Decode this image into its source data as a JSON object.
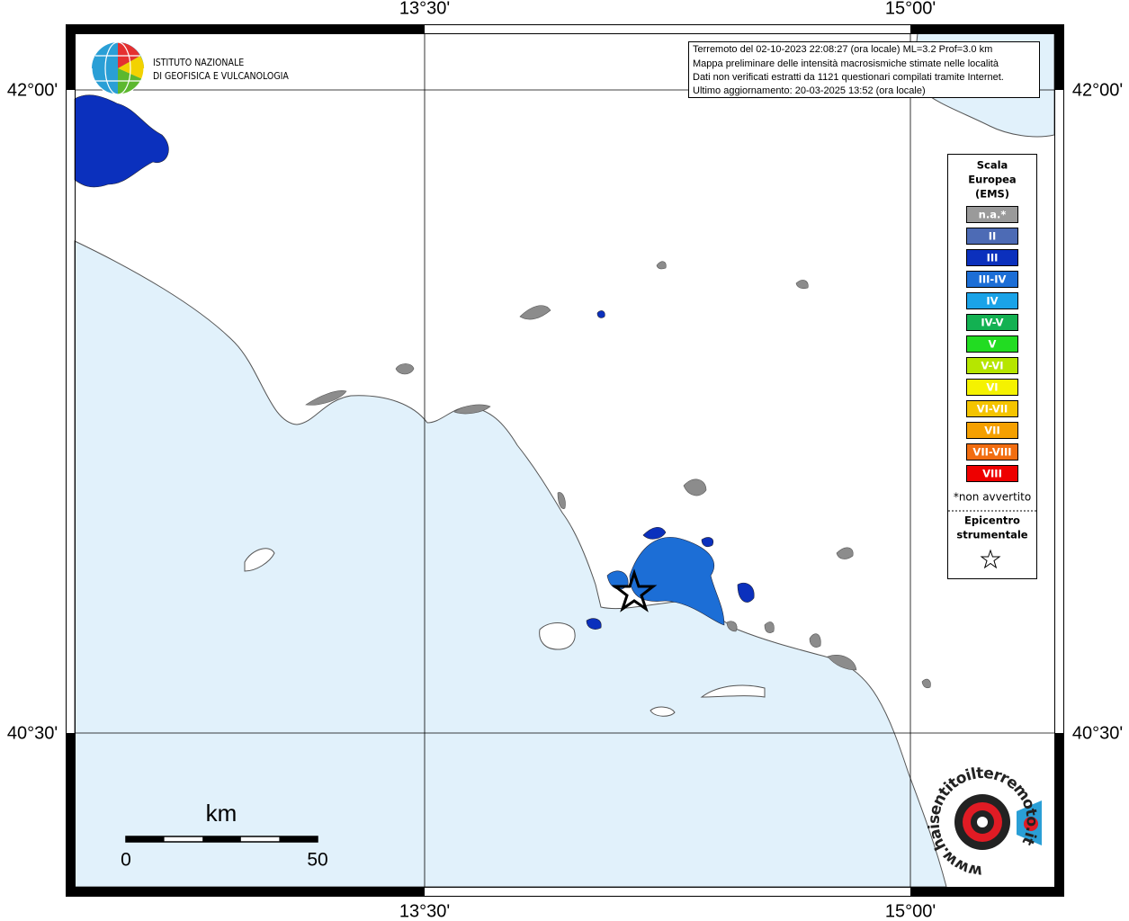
{
  "map": {
    "lon_labels": [
      "13°30'",
      "15°00'"
    ],
    "lat_labels": [
      "42°00'",
      "40°30'"
    ],
    "institute": [
      "ISTITUTO NAZIONALE",
      "DI GEOFISICA E VULCANOLOGIA"
    ],
    "info": [
      "Terremoto del 02-10-2023 22:08:27 (ora locale) ML=3.2 Prof=3.0 km",
      "Mappa preliminare delle intensità macrosismiche stimate nelle località",
      "Dati non verificati estratti da 1121 questionari compilati tramite Internet.",
      "Ultimo aggiornamento: 20-03-2025 13:52 (ora locale)"
    ],
    "legend": {
      "title": [
        "Scala",
        "Europea",
        "(EMS)"
      ],
      "items": [
        {
          "label": "n.a.*",
          "color": "#9a9a9a"
        },
        {
          "label": "II",
          "color": "#4d6bb5"
        },
        {
          "label": "III",
          "color": "#0b30bd"
        },
        {
          "label": "III-IV",
          "color": "#1c6ed6"
        },
        {
          "label": "IV",
          "color": "#1aa3e8"
        },
        {
          "label": "IV-V",
          "color": "#13b152"
        },
        {
          "label": "V",
          "color": "#22dc22"
        },
        {
          "label": "V-VI",
          "color": "#b6e600"
        },
        {
          "label": "VI",
          "color": "#f5f200"
        },
        {
          "label": "VI-VII",
          "color": "#f5c400"
        },
        {
          "label": "VII",
          "color": "#f5a000"
        },
        {
          "label": "VII-VIII",
          "color": "#f26d10"
        },
        {
          "label": "VIII",
          "color": "#ee0000"
        }
      ],
      "note": "*non avvertito",
      "epicenter": [
        "Epicentro",
        "strumentale"
      ]
    },
    "scale": {
      "unit": "km",
      "labels": [
        "0",
        "50"
      ]
    },
    "site": "www.haisentitoilterremoto.it"
  }
}
